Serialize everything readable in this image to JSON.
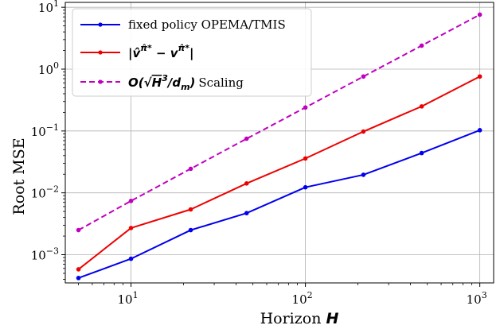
{
  "chart_data": {
    "type": "line",
    "xscale": "log",
    "yscale": "log",
    "xlim": [
      4.2,
      1200
    ],
    "ylim": [
      0.00035,
      12
    ],
    "grid": true,
    "legend_position": "top-left",
    "xlabel": "Horizon H",
    "ylabel": "Root MSE",
    "x_ticks": [
      {
        "value": 10,
        "base": "10",
        "exp": "1"
      },
      {
        "value": 100,
        "base": "10",
        "exp": "2"
      },
      {
        "value": 1000,
        "base": "10",
        "exp": "3"
      }
    ],
    "y_ticks": [
      {
        "value": 0.001,
        "base": "10",
        "exp": "−3"
      },
      {
        "value": 0.01,
        "base": "10",
        "exp": "−2"
      },
      {
        "value": 0.1,
        "base": "10",
        "exp": "−1"
      },
      {
        "value": 1,
        "base": "10",
        "exp": "0"
      },
      {
        "value": 10,
        "base": "10",
        "exp": "1"
      }
    ],
    "x": [
      5,
      10,
      22,
      46,
      100,
      215,
      464,
      1000
    ],
    "series": [
      {
        "name": "fixed policy OPEMA/TMIS",
        "color": "#0000ee",
        "dashed": false,
        "values": [
          0.00042,
          0.00086,
          0.0025,
          0.0047,
          0.0123,
          0.0196,
          0.044,
          0.103
        ]
      },
      {
        "name": "|v̂^π̂* − v^π̂*|",
        "color": "#ee0000",
        "dashed": false,
        "values": [
          0.00058,
          0.0027,
          0.0054,
          0.0142,
          0.036,
          0.098,
          0.25,
          0.76
        ]
      },
      {
        "name": "O(√H³/d_m) Scaling",
        "color": "#bf00bf",
        "dashed": true,
        "values": [
          0.0025,
          0.0074,
          0.0245,
          0.075,
          0.24,
          0.76,
          2.4,
          7.6
        ]
      }
    ]
  },
  "labels": {
    "ylabel": "Root MSE",
    "xlabel_text": "Horizon ",
    "xlabel_var": "H",
    "legend_1": "fixed policy OPEMA/TMIS",
    "legend_3_suffix": "Scaling"
  }
}
